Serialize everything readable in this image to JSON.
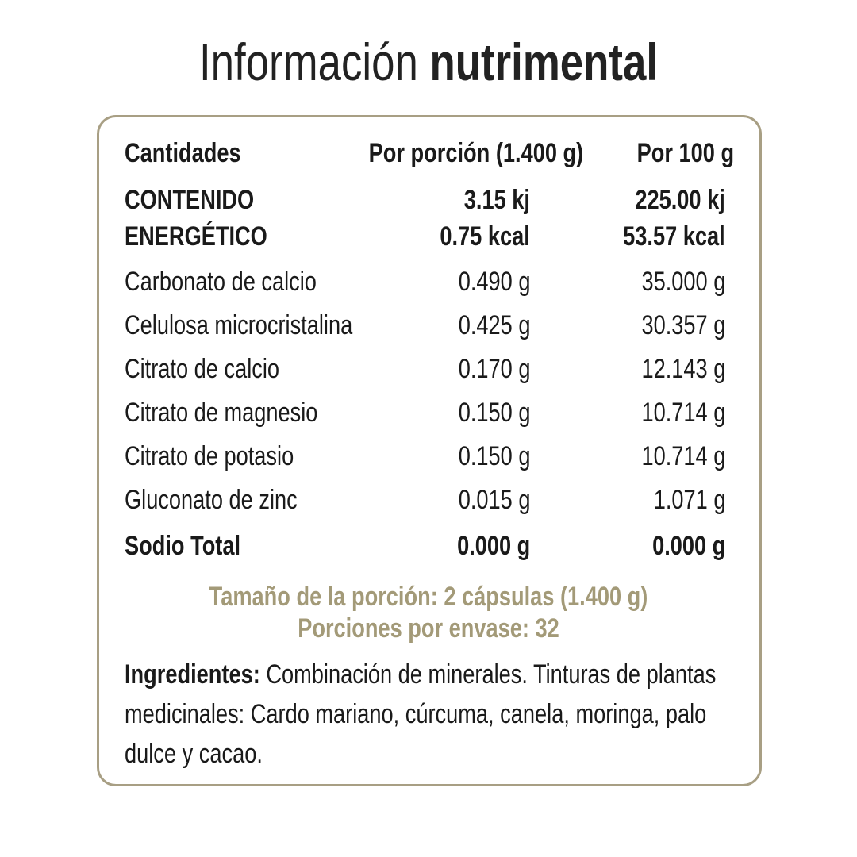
{
  "header": {
    "title_light": "Información",
    "title_bold": "nutrimental"
  },
  "table": {
    "header": [
      "Cantidades",
      "Por porción (1.400 g)",
      "Por 100 g"
    ],
    "energy": {
      "label": [
        "CONTENIDO",
        "ENERGÉTICO"
      ],
      "per_portion": [
        "3.15 kj",
        "0.75 kcal"
      ],
      "per_100g": [
        "225.00 kj",
        "53.57 kcal"
      ]
    },
    "rows": [
      [
        "Carbonato de calcio",
        "0.490 g",
        "35.000 g"
      ],
      [
        "Celulosa microcristalina",
        "0.425 g",
        "30.357 g"
      ],
      [
        "Citrato de calcio",
        "0.170 g",
        "12.143 g"
      ],
      [
        "Citrato de magnesio",
        "0.150 g",
        "10.714 g"
      ],
      [
        "Citrato de potasio",
        "0.150 g",
        "10.714 g"
      ],
      [
        "Gluconato de zinc",
        "0.015 g",
        "1.071 g"
      ]
    ],
    "total": [
      "Sodio Total",
      "0.000 g",
      "0.000 g"
    ]
  },
  "serving": {
    "size": "Tamaño de la porción: 2 cápsulas (1.400 g)",
    "servings": "Porciones por envase: 32"
  },
  "ingredients": {
    "label": "Ingredientes:",
    "text": "Combinación de minerales. Tinturas de plantas medicinales: Cardo mariano, cúrcuma, canela, moringa, palo dulce y cacao."
  }
}
